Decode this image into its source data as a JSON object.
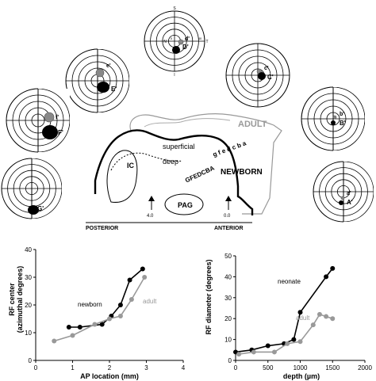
{
  "figure": {
    "diagram": {
      "labels": {
        "adult": "ADULT",
        "newborn": "NEWBORN",
        "superficial": "superficial",
        "deep": "deep",
        "ic": "IC",
        "pag": "PAG",
        "posterior": "POSTERIOR",
        "anterior": "ANTERIOR",
        "ap_left": "4.0",
        "ap_right": "0.0",
        "newborn_sites": "GFEDCBA",
        "adult_sites": "g f e d c b a"
      },
      "compass": {
        "top": "S",
        "bottom": "I",
        "left": "N",
        "right": "T",
        "inner": "0",
        "right_tick": "40"
      },
      "receptive_fields": [
        {
          "id": "D",
          "newborn_label": "D'",
          "adult_label": "d'"
        },
        {
          "id": "E",
          "newborn_label": "E'",
          "adult_label": "e'"
        },
        {
          "id": "C",
          "newborn_label": "C'",
          "adult_label": "c'"
        },
        {
          "id": "F",
          "newborn_label": "F'",
          "adult_label": "f'"
        },
        {
          "id": "B",
          "newborn_label": "B'",
          "adult_label": "b'"
        },
        {
          "id": "G",
          "newborn_label": "G'",
          "adult_label": ""
        },
        {
          "id": "A",
          "newborn_label": "A'",
          "adult_label": "a'"
        }
      ]
    }
  },
  "chart_data": [
    {
      "type": "line",
      "xlabel": "AP location (mm)",
      "ylabel": "RF center (azimuthal degrees)",
      "xlim": [
        0,
        4
      ],
      "ylim": [
        0,
        40
      ],
      "xticks": [
        "0",
        "1",
        "2",
        "3",
        "4"
      ],
      "yticks": [
        "0",
        "10",
        "20",
        "30",
        "40"
      ],
      "series": [
        {
          "name": "newborn",
          "color": "#000000",
          "x": [
            0.9,
            1.2,
            1.8,
            2.05,
            2.3,
            2.55,
            2.9
          ],
          "y": [
            12,
            12,
            13,
            16,
            20,
            29,
            33
          ]
        },
        {
          "name": "adult",
          "color": "#999999",
          "x": [
            0.5,
            1.0,
            1.6,
            2.0,
            2.3,
            2.6,
            2.95
          ],
          "y": [
            7,
            9,
            13,
            15,
            16,
            22,
            30
          ]
        }
      ]
    },
    {
      "type": "line",
      "xlabel": "depth (µm)",
      "ylabel": "RF diameter (degrees)",
      "xlim": [
        0,
        2000
      ],
      "ylim": [
        0,
        50
      ],
      "xticks": [
        "0",
        "500",
        "1000",
        "1500",
        "2000"
      ],
      "yticks": [
        "0",
        "10",
        "20",
        "30",
        "40",
        "50"
      ],
      "series": [
        {
          "name": "neonate",
          "color": "#000000",
          "x": [
            0,
            250,
            500,
            750,
            900,
            1000,
            1400,
            1500
          ],
          "y": [
            4,
            5,
            7,
            8,
            10,
            23,
            40,
            44
          ]
        },
        {
          "name": "adult",
          "color": "#999999",
          "x": [
            50,
            280,
            600,
            800,
            1000,
            1200,
            1300,
            1400,
            1500
          ],
          "y": [
            3,
            4,
            4,
            8,
            9,
            17,
            22,
            21,
            20
          ]
        }
      ]
    }
  ]
}
